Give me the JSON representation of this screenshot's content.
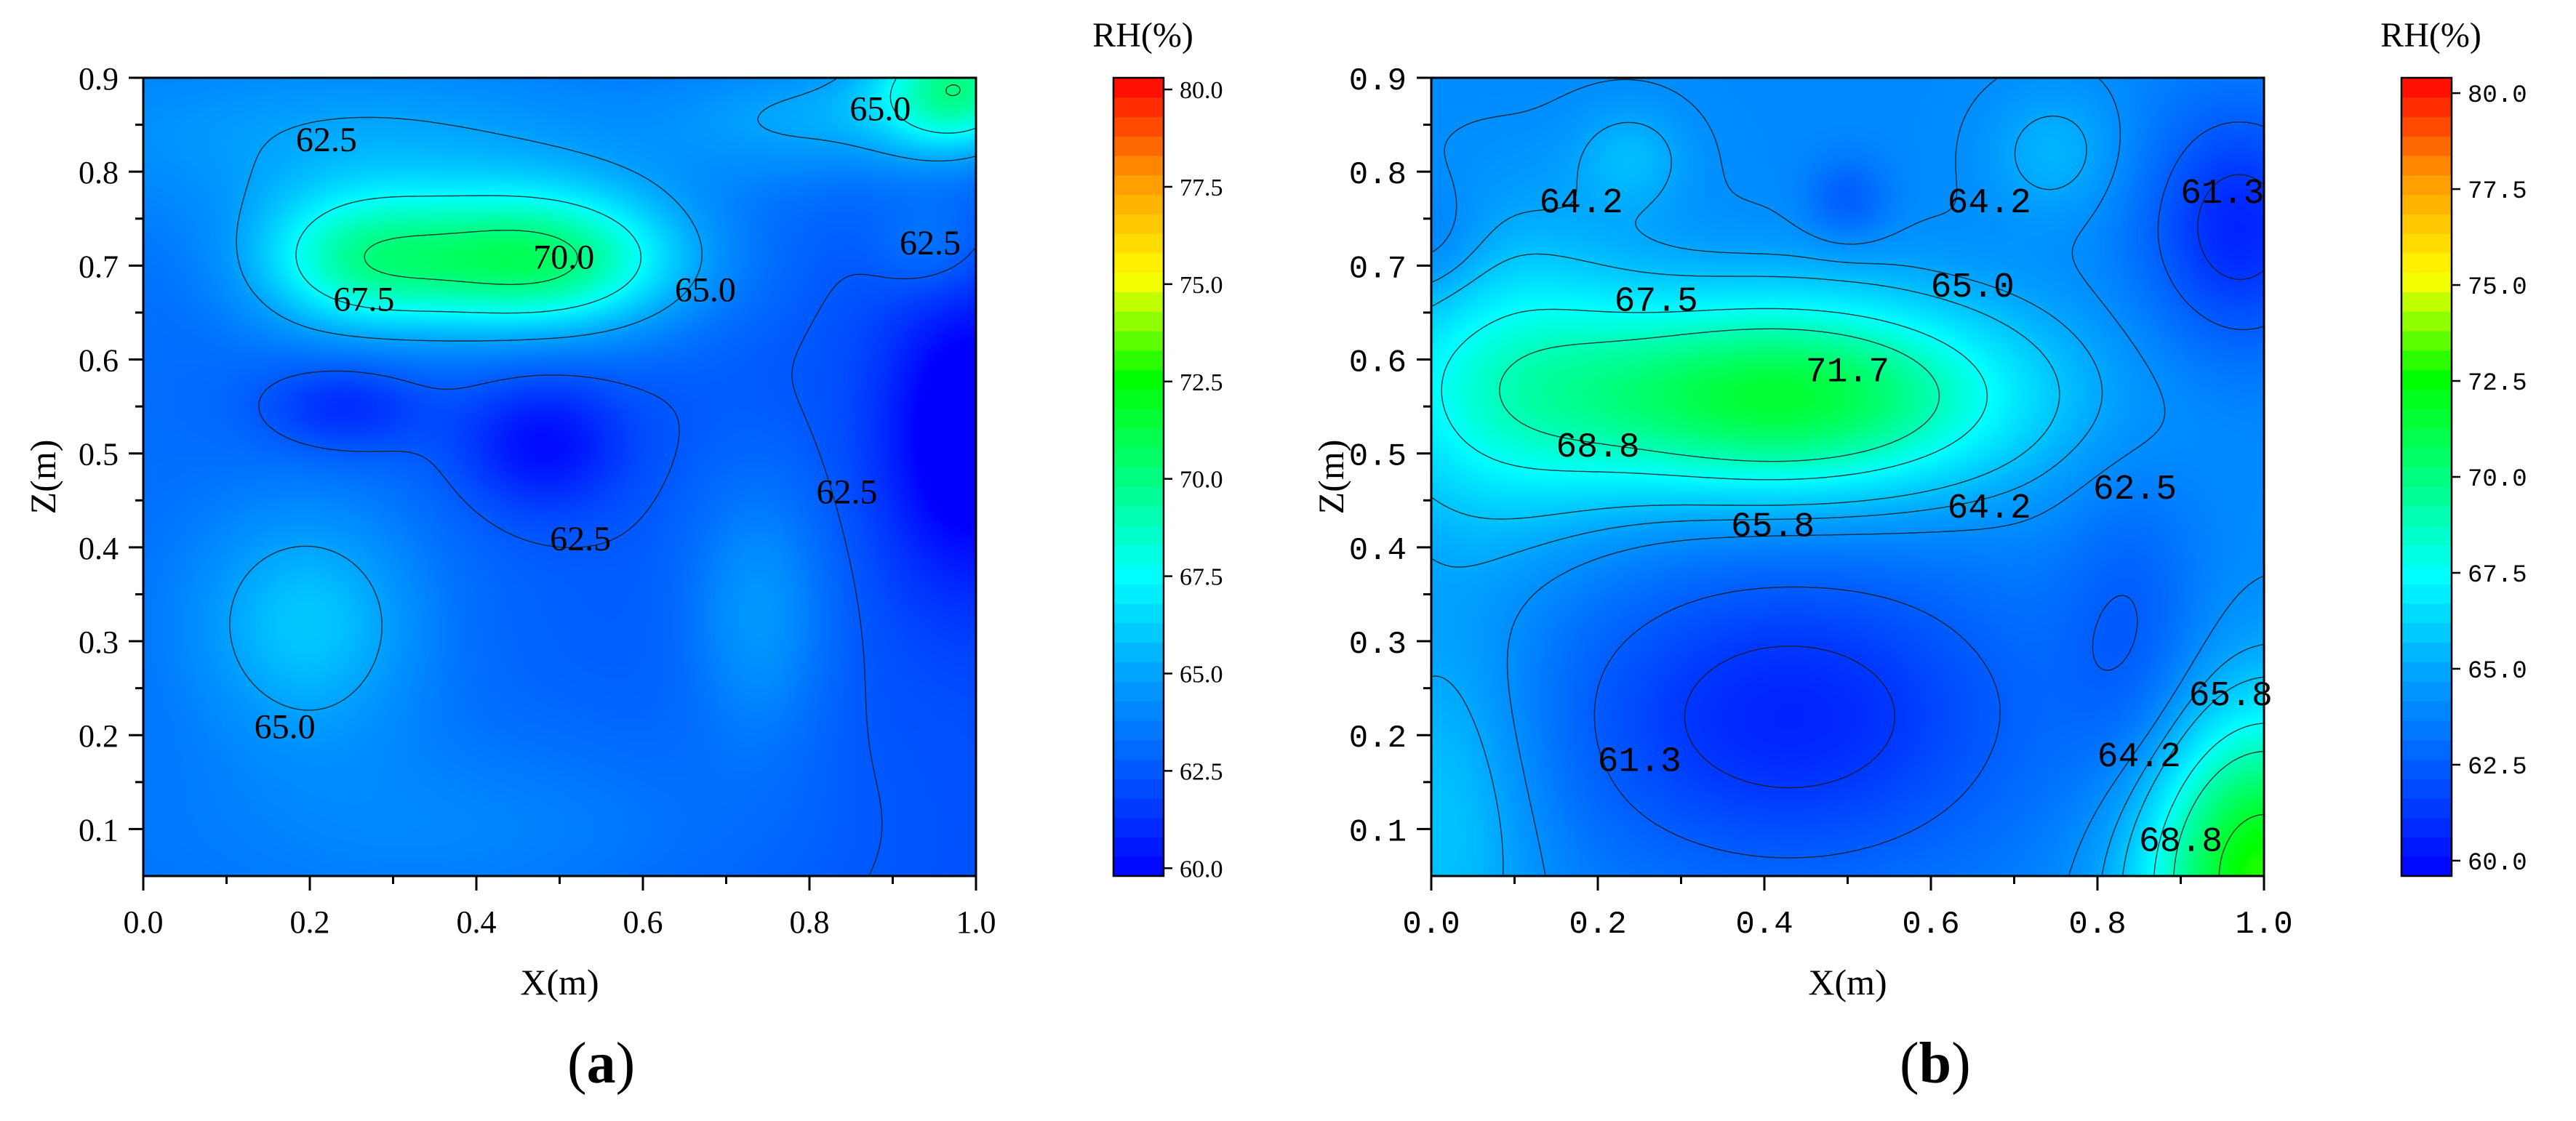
{
  "panels": [
    {
      "letter": "a"
    },
    {
      "letter": "b"
    }
  ],
  "chart_data": [
    {
      "type": "heatmap",
      "panel": "a",
      "title": "",
      "xlabel": "X(m)",
      "ylabel": "Z(m)",
      "xlim": [
        0.0,
        1.0
      ],
      "ylim": [
        0.05,
        0.9
      ],
      "xticks": [
        "0.0",
        "0.2",
        "0.4",
        "0.6",
        "0.8",
        "1.0"
      ],
      "yticks": [
        "0.1",
        "0.2",
        "0.3",
        "0.4",
        "0.5",
        "0.6",
        "0.7",
        "0.8",
        "0.9"
      ],
      "tick_font": "serif",
      "colorbar": {
        "label": "RH(%)",
        "range": [
          59.8,
          80.3
        ],
        "ticks": [
          "60.0",
          "62.5",
          "65.0",
          "67.5",
          "70.0",
          "72.5",
          "75.0",
          "77.5",
          "80.0"
        ],
        "colors": [
          "#0000ff",
          "#0055ff",
          "#00a0ff",
          "#00ffff",
          "#00ff80",
          "#00ff00",
          "#ffff00",
          "#ff9900",
          "#ff0000"
        ]
      },
      "contour_levels": [
        62.5,
        65.0,
        67.5,
        70.0
      ],
      "contour_labels": [
        {
          "text": "62.5",
          "x": 0.22,
          "z": 0.835
        },
        {
          "text": "65.0",
          "x": 0.885,
          "z": 0.868
        },
        {
          "text": "62.5",
          "x": 0.945,
          "z": 0.725
        },
        {
          "text": "70.0",
          "x": 0.505,
          "z": 0.71
        },
        {
          "text": "67.5",
          "x": 0.265,
          "z": 0.665
        },
        {
          "text": "65.0",
          "x": 0.675,
          "z": 0.675
        },
        {
          "text": "62.5",
          "x": 0.845,
          "z": 0.46
        },
        {
          "text": "62.5",
          "x": 0.525,
          "z": 0.41
        },
        {
          "text": "65.0",
          "x": 0.17,
          "z": 0.21
        }
      ],
      "field": {
        "base": 63.2,
        "gradient_x": -1.0,
        "features": [
          {
            "x": 0.47,
            "z": 0.705,
            "amp": 7.6,
            "sx": 0.13,
            "sz": 0.055
          },
          {
            "x": 0.25,
            "z": 0.705,
            "amp": 4.6,
            "sx": 0.09,
            "sz": 0.055
          },
          {
            "x": 0.3,
            "z": 0.84,
            "amp": 2.0,
            "sx": 0.3,
            "sz": 0.07
          },
          {
            "x": 0.2,
            "z": 0.32,
            "amp": 3.0,
            "sx": 0.1,
            "sz": 0.09
          },
          {
            "x": 0.74,
            "z": 0.33,
            "amp": 2.2,
            "sx": 0.06,
            "sz": 0.1
          },
          {
            "x": 0.98,
            "z": 0.89,
            "amp": 7.0,
            "sx": 0.07,
            "sz": 0.05
          },
          {
            "x": 0.81,
            "z": 0.86,
            "amp": 2.2,
            "sx": 0.12,
            "sz": 0.05
          },
          {
            "x": 0.48,
            "z": 0.51,
            "amp": -2.6,
            "sx": 0.07,
            "sz": 0.05
          },
          {
            "x": 0.24,
            "z": 0.55,
            "amp": -2.0,
            "sx": 0.07,
            "sz": 0.035
          },
          {
            "x": 0.99,
            "z": 0.52,
            "amp": -3.6,
            "sx": 0.07,
            "sz": 0.11
          },
          {
            "x": 0.95,
            "z": 0.72,
            "amp": 1.5,
            "sx": 0.05,
            "sz": 0.04
          },
          {
            "x": 0.4,
            "z": 0.1,
            "amp": 1.2,
            "sx": 0.25,
            "sz": 0.08
          }
        ]
      }
    },
    {
      "type": "heatmap",
      "panel": "b",
      "title": "",
      "xlabel": "X(m)",
      "ylabel": "Z(m)",
      "xlim": [
        0.0,
        1.0
      ],
      "ylim": [
        0.05,
        0.9
      ],
      "xticks": [
        "0.0",
        "0.2",
        "0.4",
        "0.6",
        "0.8",
        "1.0"
      ],
      "yticks": [
        "0.1",
        "0.2",
        "0.3",
        "0.4",
        "0.5",
        "0.6",
        "0.7",
        "0.8",
        "0.9"
      ],
      "tick_font": "mono",
      "colorbar": {
        "label": "RH(%)",
        "range": [
          59.6,
          80.4
        ],
        "ticks": [
          "60.0",
          "62.5",
          "65.0",
          "67.5",
          "70.0",
          "72.5",
          "75.0",
          "77.5",
          "80.0"
        ],
        "colors": [
          "#0000ff",
          "#0055ff",
          "#00a0ff",
          "#00ffff",
          "#00ff80",
          "#00ff00",
          "#ffff00",
          "#ff9900",
          "#ff0000"
        ]
      },
      "contour_levels": [
        61.3,
        62.5,
        64.2,
        65.0,
        65.8,
        67.5,
        68.8,
        71.7
      ],
      "contour_labels": [
        {
          "text": "64.2",
          "x": 0.18,
          "z": 0.77
        },
        {
          "text": "64.2",
          "x": 0.67,
          "z": 0.77
        },
        {
          "text": "61.3",
          "x": 0.95,
          "z": 0.78
        },
        {
          "text": "67.5",
          "x": 0.27,
          "z": 0.665
        },
        {
          "text": "65.0",
          "x": 0.65,
          "z": 0.68
        },
        {
          "text": "71.7",
          "x": 0.5,
          "z": 0.59
        },
        {
          "text": "68.8",
          "x": 0.2,
          "z": 0.51
        },
        {
          "text": "62.5",
          "x": 0.845,
          "z": 0.465
        },
        {
          "text": "64.2",
          "x": 0.67,
          "z": 0.445
        },
        {
          "text": "65.8",
          "x": 0.41,
          "z": 0.425
        },
        {
          "text": "65.8",
          "x": 0.96,
          "z": 0.245
        },
        {
          "text": "61.3",
          "x": 0.25,
          "z": 0.175
        },
        {
          "text": "64.2",
          "x": 0.85,
          "z": 0.18
        },
        {
          "text": "68.8",
          "x": 0.9,
          "z": 0.09
        }
      ],
      "field": {
        "base": 64.0,
        "gradient_x": 0.0,
        "features": [
          {
            "x": 0.42,
            "z": 0.56,
            "amp": 7.6,
            "sx": 0.2,
            "sz": 0.075
          },
          {
            "x": 0.08,
            "z": 0.58,
            "amp": 3.0,
            "sx": 0.12,
            "sz": 0.12
          },
          {
            "x": 0.43,
            "z": 0.22,
            "amp": -3.3,
            "sx": 0.2,
            "sz": 0.12
          },
          {
            "x": 0.97,
            "z": 0.74,
            "amp": -3.3,
            "sx": 0.08,
            "sz": 0.09
          },
          {
            "x": 1.0,
            "z": 0.05,
            "amp": 9.0,
            "sx": 0.1,
            "sz": 0.12
          },
          {
            "x": 0.24,
            "z": 0.815,
            "amp": 1.4,
            "sx": 0.05,
            "sz": 0.04
          },
          {
            "x": 0.75,
            "z": 0.82,
            "amp": 1.4,
            "sx": 0.06,
            "sz": 0.05
          },
          {
            "x": 0.5,
            "z": 0.77,
            "amp": -1.6,
            "sx": 0.035,
            "sz": 0.03
          },
          {
            "x": 0.0,
            "z": 0.72,
            "amp": -1.2,
            "sx": 0.05,
            "sz": 0.05
          },
          {
            "x": 0.02,
            "z": 0.12,
            "amp": 2.0,
            "sx": 0.08,
            "sz": 0.15
          },
          {
            "x": 0.84,
            "z": 0.3,
            "amp": -1.5,
            "sx": 0.06,
            "sz": 0.12
          }
        ]
      }
    }
  ]
}
